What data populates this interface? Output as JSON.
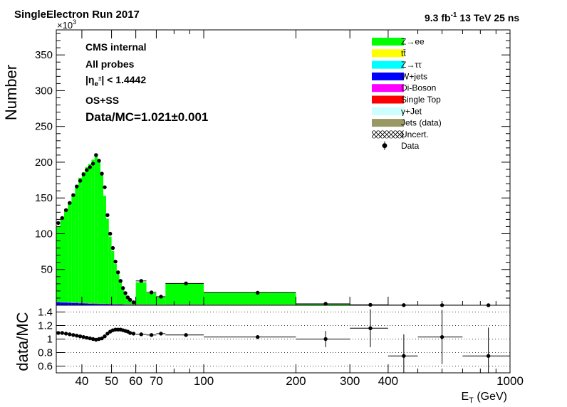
{
  "header": {
    "left_title": "SingleElectron Run 2017",
    "right_lumi": "9.3 fb",
    "right_lumi_exp": "-1",
    "right_energy": " 13 TeV 25 ns"
  },
  "annotations": {
    "cms": "CMS internal",
    "probes": "All probes",
    "eta_eta": "|η",
    "eta_sub": "e",
    "eta_sup": "±",
    "eta_cut": "| < 1.4442",
    "charge": "OS+SS",
    "ratio_text": "Data/MC=1.021±0.001",
    "exponent_label": "×10",
    "exponent_power": "3"
  },
  "legend": [
    {
      "label": "Z→ee",
      "color": "#00ff00",
      "style": "fill"
    },
    {
      "label": "tt̄",
      "color": "#ffff00",
      "style": "fill"
    },
    {
      "label": "Z→ττ",
      "color": "#00ffff",
      "style": "fill"
    },
    {
      "label": "W+jets",
      "color": "#0000ff",
      "style": "fill"
    },
    {
      "label": "Di-Boson",
      "color": "#ff00ff",
      "style": "fill"
    },
    {
      "label": "Single Top",
      "color": "#ff0000",
      "style": "fill"
    },
    {
      "label": "γ+Jet",
      "color": "#ccffff",
      "style": "fill"
    },
    {
      "label": "Jets (data)",
      "color": "#999966",
      "style": "fill"
    },
    {
      "label": "Uncert.",
      "color": "#000000",
      "style": "hatch"
    },
    {
      "label": "Data",
      "color": "#000000",
      "style": "marker"
    }
  ],
  "chart_data": [
    {
      "type": "bar",
      "panel": "main",
      "xscale": "log",
      "xlim": [
        33,
        1000
      ],
      "ylim": [
        0,
        385000
      ],
      "ylabel": "Number",
      "xlabel": "",
      "yticks": [
        50000,
        100000,
        150000,
        200000,
        250000,
        300000,
        350000
      ],
      "ytick_labels": [
        "50",
        "100",
        "150",
        "200",
        "250",
        "300",
        "350"
      ],
      "bins": [
        [
          33,
          34
        ],
        [
          34,
          35
        ],
        [
          35,
          36
        ],
        [
          36,
          37
        ],
        [
          37,
          38
        ],
        [
          38,
          39
        ],
        [
          39,
          40
        ],
        [
          40,
          41
        ],
        [
          41,
          42
        ],
        [
          42,
          43
        ],
        [
          43,
          44
        ],
        [
          44,
          45
        ],
        [
          45,
          46
        ],
        [
          46,
          47
        ],
        [
          47,
          48
        ],
        [
          48,
          49
        ],
        [
          49,
          50
        ],
        [
          50,
          51
        ],
        [
          51,
          52
        ],
        [
          52,
          53
        ],
        [
          53,
          54
        ],
        [
          54,
          55
        ],
        [
          55,
          56
        ],
        [
          56,
          57
        ],
        [
          57,
          58
        ],
        [
          58,
          60
        ],
        [
          60,
          65
        ],
        [
          65,
          70
        ],
        [
          70,
          75
        ],
        [
          75,
          100
        ],
        [
          100,
          200
        ],
        [
          200,
          300
        ],
        [
          300,
          400
        ],
        [
          400,
          500
        ],
        [
          500,
          700
        ],
        [
          700,
          1000
        ]
      ],
      "series": [
        {
          "name": "Z→ee",
          "values": [
            105000,
            118000,
            128000,
            140000,
            151000,
            165000,
            175000,
            183000,
            190000,
            195000,
            201000,
            207000,
            201000,
            183000,
            151000,
            119000,
            94000,
            74000,
            56000,
            42000,
            31000,
            22000,
            15000,
            10000,
            7000,
            4000,
            31000,
            16000,
            10500,
            29500,
            17500,
            2000,
            600,
            300,
            150,
            80
          ]
        },
        {
          "name": "Di-Boson",
          "values": [
            500,
            500,
            500,
            500,
            500,
            500,
            500,
            500,
            500,
            500,
            500,
            500,
            500,
            500,
            500,
            500,
            500,
            500,
            500,
            500,
            500,
            500,
            500,
            500,
            500,
            500,
            500,
            500,
            500,
            500,
            500,
            300,
            100,
            50,
            30,
            20
          ]
        },
        {
          "name": "W+jets",
          "values": [
            4000,
            3800,
            3600,
            3400,
            3200,
            3000,
            2800,
            2600,
            2400,
            2200,
            2000,
            1900,
            1800,
            1700,
            1600,
            1500,
            1400,
            1300,
            1200,
            1100,
            1000,
            900,
            800,
            700,
            600,
            500,
            600,
            400,
            300,
            400,
            300,
            200,
            100,
            50,
            30,
            20
          ]
        }
      ],
      "data": {
        "name": "Data",
        "x": [
          33.5,
          34.5,
          35.5,
          36.5,
          37.5,
          38.5,
          39.5,
          40.5,
          41.5,
          42.5,
          43.5,
          44.5,
          45.5,
          46.5,
          47.5,
          48.5,
          49.5,
          50.5,
          51.5,
          52.5,
          53.5,
          54.5,
          55.5,
          56.5,
          57.5,
          59,
          62.5,
          67.5,
          72.5,
          87.5,
          150,
          250,
          350,
          450,
          600,
          850
        ],
        "y": [
          115000,
          122000,
          133000,
          143000,
          154000,
          166000,
          174000,
          183000,
          189000,
          193000,
          198000,
          210000,
          202000,
          184000,
          165000,
          126000,
          100000,
          80000,
          61000,
          46000,
          34000,
          24000,
          17000,
          11000,
          7500,
          4200,
          34000,
          18000,
          12000,
          30500,
          17500,
          2000,
          600,
          200,
          100,
          60
        ]
      }
    },
    {
      "type": "scatter",
      "panel": "ratio",
      "xscale": "log",
      "xlim": [
        33,
        1000
      ],
      "ylim": [
        0.5,
        1.5
      ],
      "ylabel": "data/MC",
      "xlabel": "E_T (GeV)",
      "yticks": [
        0.6,
        0.8,
        1.0,
        1.2,
        1.4
      ],
      "ytick_labels": [
        "0.6",
        "0.8",
        "1",
        "1.2",
        "1.4"
      ],
      "xticks": [
        40,
        50,
        60,
        70,
        100,
        200,
        300,
        400,
        1000
      ],
      "xtick_labels": [
        "40",
        "50",
        "60",
        "70",
        "100",
        "200",
        "300",
        "400",
        "1000"
      ],
      "gridlines_y": [
        0.6,
        0.8,
        1.0,
        1.2,
        1.4
      ],
      "reference_line": 1.0,
      "points": {
        "x": [
          33.5,
          34.5,
          35.5,
          36.5,
          37.5,
          38.5,
          39.5,
          40.5,
          41.5,
          42.5,
          43.5,
          44.5,
          45.5,
          46.5,
          47.5,
          48.5,
          49.5,
          50.5,
          51.5,
          52.5,
          53.5,
          54.5,
          55.5,
          56.5,
          57.5,
          59,
          62.5,
          67.5,
          72.5,
          87.5,
          150,
          250,
          350,
          450,
          600,
          850
        ],
        "y": [
          1.09,
          1.09,
          1.08,
          1.07,
          1.06,
          1.05,
          1.04,
          1.03,
          1.02,
          1.01,
          1.0,
          0.99,
          1.0,
          1.01,
          1.04,
          1.08,
          1.11,
          1.13,
          1.14,
          1.14,
          1.14,
          1.13,
          1.12,
          1.11,
          1.09,
          1.08,
          1.07,
          1.06,
          1.08,
          1.06,
          1.03,
          1.0,
          1.16,
          0.75,
          1.03,
          0.75
        ],
        "yerr": [
          0.01,
          0.01,
          0.01,
          0.01,
          0.01,
          0.01,
          0.01,
          0.01,
          0.01,
          0.01,
          0.01,
          0.01,
          0.01,
          0.01,
          0.01,
          0.01,
          0.01,
          0.01,
          0.01,
          0.01,
          0.01,
          0.01,
          0.01,
          0.01,
          0.01,
          0.01,
          0.01,
          0.01,
          0.01,
          0.01,
          0.01,
          0.12,
          0.28,
          0.32,
          0.4,
          0.42
        ],
        "xerr_bins": [
          [
            33,
            34
          ],
          [
            34,
            35
          ],
          [
            35,
            36
          ],
          [
            36,
            37
          ],
          [
            37,
            38
          ],
          [
            38,
            39
          ],
          [
            39,
            40
          ],
          [
            40,
            41
          ],
          [
            41,
            42
          ],
          [
            42,
            43
          ],
          [
            43,
            44
          ],
          [
            44,
            45
          ],
          [
            45,
            46
          ],
          [
            46,
            47
          ],
          [
            47,
            48
          ],
          [
            48,
            49
          ],
          [
            49,
            50
          ],
          [
            50,
            51
          ],
          [
            51,
            52
          ],
          [
            52,
            53
          ],
          [
            53,
            54
          ],
          [
            54,
            55
          ],
          [
            55,
            56
          ],
          [
            56,
            57
          ],
          [
            57,
            58
          ],
          [
            58,
            60
          ],
          [
            60,
            65
          ],
          [
            65,
            70
          ],
          [
            70,
            75
          ],
          [
            75,
            100
          ],
          [
            100,
            200
          ],
          [
            200,
            300
          ],
          [
            300,
            400
          ],
          [
            400,
            500
          ],
          [
            500,
            700
          ],
          [
            700,
            1000
          ]
        ]
      }
    }
  ]
}
